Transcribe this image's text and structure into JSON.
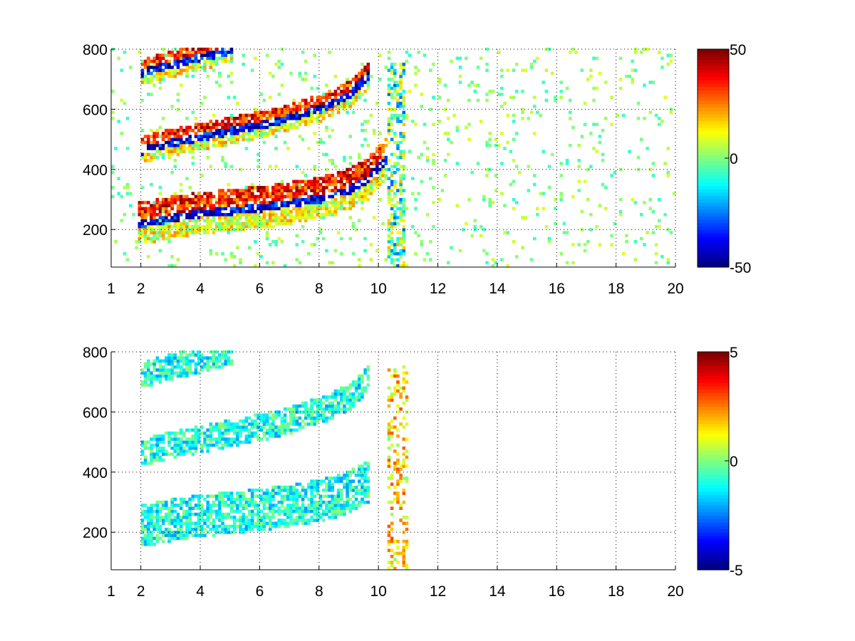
{
  "chart_data": [
    {
      "type": "heatmap",
      "title": "",
      "xlabel": "",
      "ylabel": "",
      "xlim": [
        1,
        20
      ],
      "ylim": [
        75,
        800
      ],
      "x_ticks": [
        1,
        2,
        4,
        6,
        8,
        10,
        12,
        14,
        16,
        18,
        20
      ],
      "x_tick_labels": [
        "1",
        "2",
        "4",
        "6",
        "8",
        "10",
        "12",
        "14",
        "16",
        "18",
        "20"
      ],
      "y_ticks": [
        200,
        400,
        600,
        800
      ],
      "y_tick_labels": [
        "200",
        "400",
        "600",
        "800"
      ],
      "colorbar": {
        "min": -50,
        "max": 50,
        "tick_values": [
          -50,
          0,
          50
        ],
        "tick_labels": [
          "-50",
          "0",
          "50"
        ],
        "colormap": "jet"
      },
      "grid": true,
      "bands": [
        {
          "x": [
            1.9,
            3,
            4,
            5,
            6,
            7,
            8,
            9,
            9.6,
            10.2
          ],
          "y": [
            215,
            235,
            250,
            260,
            270,
            285,
            300,
            330,
            365,
            430
          ]
        },
        {
          "x": [
            2,
            3,
            4,
            5,
            6,
            7,
            8,
            9,
            9.6
          ],
          "y": [
            460,
            485,
            505,
            525,
            545,
            570,
            600,
            645,
            710
          ]
        },
        {
          "x": [
            2,
            3,
            4,
            5
          ],
          "y": [
            720,
            745,
            770,
            795
          ]
        }
      ],
      "vertical_band_x": [
        10.2,
        10.8
      ]
    },
    {
      "type": "heatmap",
      "title": "",
      "xlabel": "",
      "ylabel": "",
      "xlim": [
        1,
        20
      ],
      "ylim": [
        75,
        800
      ],
      "x_ticks": [
        1,
        2,
        4,
        6,
        8,
        10,
        12,
        14,
        16,
        18,
        20
      ],
      "x_tick_labels": [
        "1",
        "2",
        "4",
        "6",
        "8",
        "10",
        "12",
        "14",
        "16",
        "18",
        "20"
      ],
      "y_ticks": [
        200,
        400,
        600,
        800
      ],
      "y_tick_labels": [
        "200",
        "400",
        "600",
        "800"
      ],
      "colorbar": {
        "min": -5,
        "max": 5,
        "tick_values": [
          -5,
          0,
          5
        ],
        "tick_labels": [
          "-5",
          "0",
          "5"
        ],
        "colormap": "jet"
      },
      "grid": true,
      "bands": [
        {
          "x": [
            2,
            3,
            4,
            5,
            6,
            7,
            8,
            9,
            9.6
          ],
          "y": [
            215,
            235,
            250,
            260,
            270,
            285,
            300,
            330,
            365
          ]
        },
        {
          "x": [
            2,
            3,
            4,
            5,
            6,
            7,
            8,
            9,
            9.6
          ],
          "y": [
            460,
            485,
            505,
            525,
            545,
            570,
            600,
            645,
            710
          ]
        },
        {
          "x": [
            2,
            3,
            4,
            5
          ],
          "y": [
            720,
            745,
            770,
            795
          ]
        }
      ],
      "vertical_band_x": [
        10.2,
        10.9
      ]
    }
  ]
}
